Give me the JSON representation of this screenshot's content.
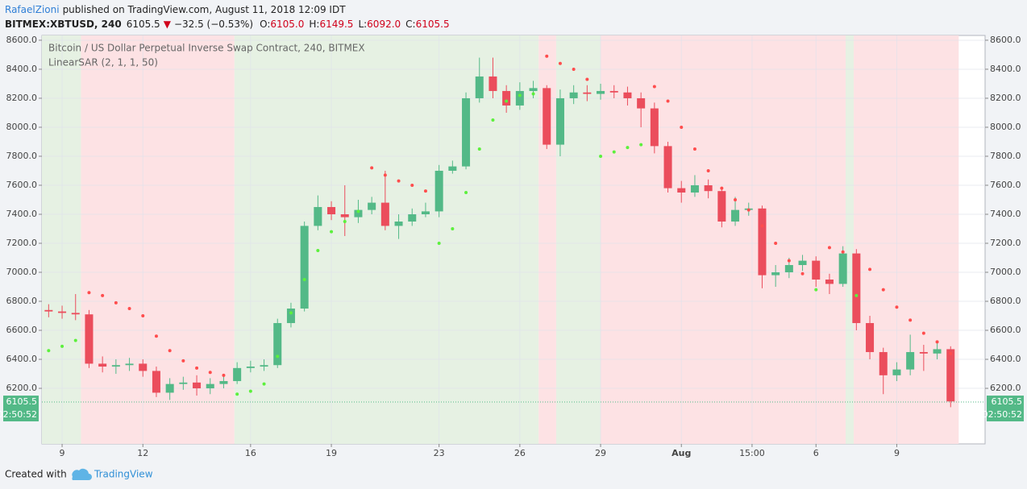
{
  "header": {
    "author": "RafaelZioni",
    "published": "published on TradingView.com, August 11, 2018 12:09 IDT",
    "symbol": "BITMEX:XBTUSD, 240",
    "price": "6105.5",
    "arrow": "▼",
    "change": "−32.5 (−0.53%)",
    "ohlc": [
      {
        "key": "O:",
        "value": "6105.0"
      },
      {
        "key": "H:",
        "value": "6149.5"
      },
      {
        "key": "L:",
        "value": "6092.0"
      },
      {
        "key": "C:",
        "value": "6105.5"
      }
    ]
  },
  "chart_data": {
    "type": "candlestick",
    "title": "Bitcoin / US Dollar Perpetual Inverse Swap Contract, 240, BITMEX",
    "indicator": "LinearSAR (2, 1, 1, 50)",
    "xlim": [
      8.25,
      43.28
    ],
    "ylim": [
      5817,
      8633
    ],
    "xticks": [
      9,
      12,
      16,
      19,
      23,
      26,
      29,
      {
        "value": 32,
        "label": "Aug"
      },
      {
        "value": 34.625,
        "label": "15:00"
      },
      {
        "value": 37,
        "label": "6"
      },
      {
        "value": 40,
        "label": "9"
      }
    ],
    "yticks": [
      {
        "value": 6200,
        "label": "6200.0"
      },
      {
        "value": 6400,
        "label": "6400.0"
      },
      {
        "value": 6600,
        "label": "6600.0"
      },
      {
        "value": 6800,
        "label": "6800.0"
      },
      {
        "value": 7000,
        "label": "7000.0"
      },
      {
        "value": 7200,
        "label": "7200.0"
      },
      {
        "value": 7400,
        "label": "7400.0"
      },
      {
        "value": 7600,
        "label": "7600.0"
      },
      {
        "value": 7800,
        "label": "7800.0"
      },
      {
        "value": 8000,
        "label": "8000.0"
      },
      {
        "value": 8200,
        "label": "8200.0"
      },
      {
        "value": 8400,
        "label": "8400.0"
      },
      {
        "value": 8600,
        "label": "8600.0"
      }
    ],
    "grid": true,
    "up_color": "#53b987",
    "down_color": "#eb4d5c",
    "sar_below_color": "#5cf03c",
    "sar_above_color": "#ff4d4d",
    "background": [
      {
        "start": 8.25,
        "end": 9.7,
        "color": "#e6f1e3"
      },
      {
        "start": 9.7,
        "end": 15.4,
        "color": "#fde2e4"
      },
      {
        "start": 15.4,
        "end": 26.7,
        "color": "#e6f1e3"
      },
      {
        "start": 26.7,
        "end": 27.35,
        "color": "#fde2e4"
      },
      {
        "start": 27.35,
        "end": 29.0,
        "color": "#e6f1e3"
      },
      {
        "start": 29.0,
        "end": 38.1,
        "color": "#fde2e4"
      },
      {
        "start": 38.1,
        "end": 38.4,
        "color": "#e6f1e3"
      },
      {
        "start": 38.4,
        "end": 42.3,
        "color": "#fde2e4"
      }
    ],
    "x": [
      8.5,
      9,
      9.5,
      10,
      10.5,
      11,
      11.5,
      12,
      12.5,
      13,
      13.5,
      14,
      14.5,
      15,
      15.5,
      16,
      16.5,
      17,
      17.5,
      18,
      18.5,
      19,
      19.5,
      20,
      20.5,
      21,
      21.5,
      22,
      22.5,
      23,
      23.5,
      24,
      24.5,
      25,
      25.5,
      26,
      26.5,
      27,
      27.5,
      28,
      28.5,
      29,
      29.5,
      30,
      30.5,
      31,
      31.5,
      32,
      32.5,
      33,
      33.5,
      34,
      34.5,
      35,
      35.5,
      36,
      36.5,
      37,
      37.5,
      38,
      38.5,
      39,
      39.5,
      40,
      40.5,
      41,
      41.5,
      42
    ],
    "open": [
      6740,
      6730,
      6720,
      6710,
      6370,
      6350,
      6360,
      6370,
      6320,
      6170,
      6230,
      6240,
      6200,
      6230,
      6250,
      6340,
      6350,
      6360,
      6650,
      6750,
      7320,
      7450,
      7400,
      7380,
      7430,
      7480,
      7320,
      7350,
      7400,
      7420,
      7700,
      7730,
      8200,
      8350,
      8250,
      8150,
      8250,
      8270,
      7880,
      8200,
      8240,
      8230,
      8250,
      8240,
      8200,
      8130,
      7870,
      7580,
      7550,
      7600,
      7560,
      7350,
      7430,
      7440,
      6980,
      7000,
      7050,
      7080,
      6950,
      6920,
      7130,
      6650,
      6450,
      6290,
      6330,
      6450,
      6440,
      6470
    ],
    "high": [
      6780,
      6770,
      6850,
      6740,
      6420,
      6400,
      6410,
      6400,
      6350,
      6270,
      6280,
      6290,
      6270,
      6290,
      6380,
      6390,
      6400,
      6680,
      6790,
      7350,
      7530,
      7490,
      7600,
      7500,
      7520,
      7700,
      7400,
      7440,
      7480,
      7740,
      7770,
      8240,
      8480,
      8480,
      8290,
      8310,
      8320,
      8290,
      8260,
      8290,
      8290,
      8300,
      8290,
      8280,
      8240,
      8170,
      7900,
      7630,
      7670,
      7640,
      7590,
      7520,
      7480,
      7460,
      7050,
      7100,
      7120,
      7110,
      6990,
      7180,
      7160,
      6700,
      6480,
      6380,
      6570,
      6500,
      6520,
      6490
    ],
    "low": [
      6690,
      6680,
      6670,
      6340,
      6310,
      6300,
      6320,
      6280,
      6140,
      6120,
      6190,
      6150,
      6160,
      6200,
      6230,
      6310,
      6320,
      6340,
      6620,
      6730,
      7290,
      7360,
      7250,
      7340,
      7400,
      7290,
      7230,
      7320,
      7380,
      7380,
      7680,
      7710,
      8170,
      8200,
      8100,
      8120,
      8200,
      7850,
      7800,
      8160,
      8180,
      8190,
      8200,
      8150,
      8000,
      7820,
      7550,
      7480,
      7520,
      7510,
      7310,
      7320,
      7390,
      6890,
      6900,
      6960,
      7010,
      6900,
      6850,
      6900,
      6600,
      6400,
      6160,
      6250,
      6290,
      6320,
      6400,
      6070
    ],
    "close": [
      6730,
      6720,
      6710,
      6370,
      6350,
      6360,
      6370,
      6320,
      6170,
      6230,
      6240,
      6200,
      6230,
      6250,
      6340,
      6350,
      6360,
      6650,
      6750,
      7320,
      7450,
      7400,
      7380,
      7430,
      7480,
      7320,
      7350,
      7400,
      7420,
      7700,
      7730,
      8200,
      8350,
      8250,
      8150,
      8250,
      8270,
      7880,
      8200,
      8240,
      8230,
      8250,
      8240,
      8200,
      8130,
      7870,
      7580,
      7550,
      7600,
      7560,
      7350,
      7430,
      7440,
      6980,
      7000,
      7050,
      7080,
      6950,
      6920,
      7130,
      6650,
      6450,
      6290,
      6330,
      6450,
      6440,
      6470,
      6110
    ],
    "sar_below": [
      6460,
      6490,
      6530,
      null,
      null,
      null,
      null,
      null,
      null,
      null,
      null,
      null,
      null,
      null,
      6160,
      6180,
      6230,
      6420,
      6720,
      6950,
      7150,
      7280,
      7350,
      7420,
      null,
      null,
      null,
      null,
      null,
      7200,
      7300,
      7550,
      7850,
      8050,
      8180,
      8220,
      8230,
      null,
      null,
      null,
      null,
      7800,
      7830,
      7860,
      7880,
      null,
      null,
      null,
      null,
      null,
      null,
      null,
      null,
      null,
      null,
      null,
      null,
      6880,
      null,
      null,
      6840,
      null,
      null,
      null,
      null,
      null,
      null,
      null
    ],
    "sar_above": [
      null,
      null,
      null,
      6860,
      6840,
      6790,
      6750,
      6700,
      6560,
      6460,
      6390,
      6340,
      6310,
      6290,
      null,
      null,
      null,
      null,
      null,
      null,
      null,
      null,
      null,
      null,
      7720,
      7670,
      7630,
      7600,
      7560,
      null,
      null,
      null,
      null,
      null,
      null,
      null,
      null,
      8490,
      8440,
      8400,
      8330,
      null,
      null,
      null,
      null,
      8280,
      8180,
      8000,
      7850,
      7700,
      7580,
      7500,
      7430,
      7320,
      7200,
      7080,
      6990,
      null,
      7170,
      7140,
      null,
      7020,
      6880,
      6760,
      6670,
      6580,
      6520,
      6440
    ],
    "last_price": 6105.5,
    "countdown": "02:50:52"
  },
  "footer": {
    "created": "Created with",
    "brand": "TradingView"
  }
}
